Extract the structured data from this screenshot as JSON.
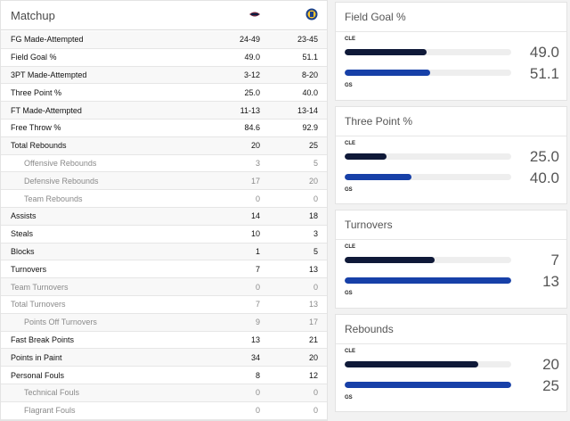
{
  "matchup": {
    "title": "Matchup",
    "rows": [
      {
        "label": "FG Made-Attempted",
        "cle": "24-49",
        "gs": "23-45",
        "kind": "main"
      },
      {
        "label": "Field Goal %",
        "cle": "49.0",
        "gs": "51.1",
        "kind": "main"
      },
      {
        "label": "3PT Made-Attempted",
        "cle": "3-12",
        "gs": "8-20",
        "kind": "main"
      },
      {
        "label": "Three Point %",
        "cle": "25.0",
        "gs": "40.0",
        "kind": "main"
      },
      {
        "label": "FT Made-Attempted",
        "cle": "11-13",
        "gs": "13-14",
        "kind": "main"
      },
      {
        "label": "Free Throw %",
        "cle": "84.6",
        "gs": "92.9",
        "kind": "main"
      },
      {
        "label": "Total Rebounds",
        "cle": "20",
        "gs": "25",
        "kind": "main"
      },
      {
        "label": "Offensive Rebounds",
        "cle": "3",
        "gs": "5",
        "kind": "sub"
      },
      {
        "label": "Defensive Rebounds",
        "cle": "17",
        "gs": "20",
        "kind": "sub"
      },
      {
        "label": "Team Rebounds",
        "cle": "0",
        "gs": "0",
        "kind": "sub"
      },
      {
        "label": "Assists",
        "cle": "14",
        "gs": "18",
        "kind": "main"
      },
      {
        "label": "Steals",
        "cle": "10",
        "gs": "3",
        "kind": "main"
      },
      {
        "label": "Blocks",
        "cle": "1",
        "gs": "5",
        "kind": "main"
      },
      {
        "label": "Turnovers",
        "cle": "7",
        "gs": "13",
        "kind": "main"
      },
      {
        "label": "Team Turnovers",
        "cle": "0",
        "gs": "0",
        "kind": "team"
      },
      {
        "label": "Total Turnovers",
        "cle": "7",
        "gs": "13",
        "kind": "team"
      },
      {
        "label": "Points Off Turnovers",
        "cle": "9",
        "gs": "17",
        "kind": "sub"
      },
      {
        "label": "Fast Break Points",
        "cle": "13",
        "gs": "21",
        "kind": "main"
      },
      {
        "label": "Points in Paint",
        "cle": "34",
        "gs": "20",
        "kind": "main"
      },
      {
        "label": "Personal Fouls",
        "cle": "8",
        "gs": "12",
        "kind": "main"
      },
      {
        "label": "Technical Fouls",
        "cle": "0",
        "gs": "0",
        "kind": "sub"
      },
      {
        "label": "Flagrant Fouls",
        "cle": "0",
        "gs": "0",
        "kind": "sub"
      }
    ]
  },
  "colors": {
    "cle": "#0f1938",
    "gs": "#1740a8",
    "track": "#eeeeee"
  },
  "icons": {
    "cle_logo": "cavaliers-logo-icon",
    "gs_logo": "warriors-logo-icon"
  },
  "cards": [
    {
      "title": "Field Goal %",
      "cle_label": "CLE",
      "gs_label": "GS",
      "cle_value": "49.0",
      "gs_value": "51.1",
      "cle_fraction": 0.49,
      "gs_fraction": 0.511
    },
    {
      "title": "Three Point %",
      "cle_label": "CLE",
      "gs_label": "GS",
      "cle_value": "25.0",
      "gs_value": "40.0",
      "cle_fraction": 0.25,
      "gs_fraction": 0.4
    },
    {
      "title": "Turnovers",
      "cle_label": "CLE",
      "gs_label": "GS",
      "cle_value": "7",
      "gs_value": "13",
      "cle_fraction": 0.54,
      "gs_fraction": 1.0
    },
    {
      "title": "Rebounds",
      "cle_label": "CLE",
      "gs_label": "GS",
      "cle_value": "20",
      "gs_value": "25",
      "cle_fraction": 0.8,
      "gs_fraction": 1.0
    }
  ]
}
